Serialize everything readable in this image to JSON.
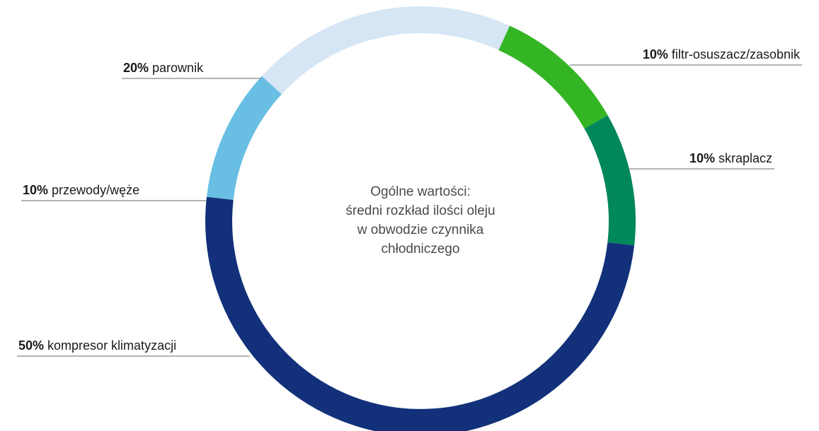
{
  "chart_data": {
    "type": "pie",
    "variant": "donut",
    "center_text": [
      "Ogólne wartości:",
      "średni rozkład ilości oleju",
      "w obwodzie czynnika",
      "chłodniczego"
    ],
    "slices": [
      {
        "percent_label": "10%",
        "name": "filtr-osuszacz/zasobnik",
        "value": 10,
        "color": "#34b524"
      },
      {
        "percent_label": "10%",
        "name": "skraplacz",
        "value": 10,
        "color": "#00875a"
      },
      {
        "percent_label": "50%",
        "name": "kompresor klimatyzacji",
        "value": 50,
        "color": "#12317a"
      },
      {
        "percent_label": "10%",
        "name": "przewody/węże",
        "value": 10,
        "color": "#68bfe3"
      },
      {
        "percent_label": "20%",
        "name": "parownik",
        "value": 20,
        "color": "#d6e6f4"
      }
    ]
  }
}
